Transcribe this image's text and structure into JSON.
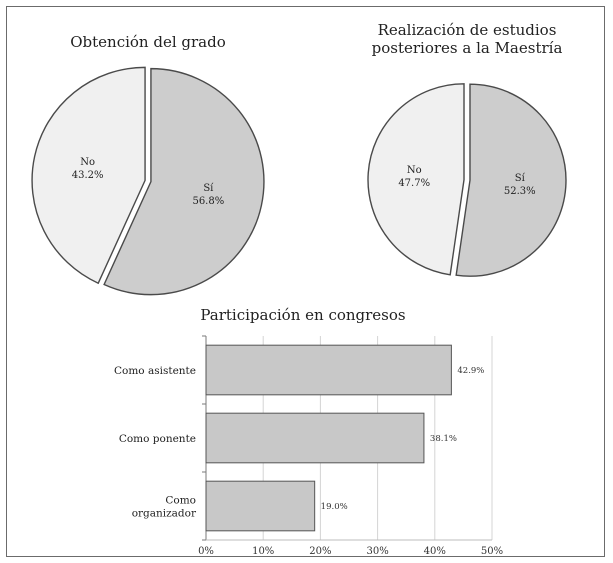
{
  "chart_data": [
    {
      "type": "pie",
      "title": "Obtención del grado",
      "slices": [
        {
          "label": "Sí",
          "value": 56.8,
          "value_label": "56.8%",
          "color": "#cdcdcd"
        },
        {
          "label": "No",
          "value": 43.2,
          "value_label": "43.2%",
          "color": "#f0f0f0"
        }
      ],
      "exploded": true
    },
    {
      "type": "pie",
      "title": "Realización de estudios posteriores a la Maestría",
      "title_lines": [
        "Realización de estudios",
        "posteriores a la Maestría"
      ],
      "slices": [
        {
          "label": "Sí",
          "value": 52.3,
          "value_label": "52.3%",
          "color": "#cdcdcd"
        },
        {
          "label": "No",
          "value": 47.7,
          "value_label": "47.7%",
          "color": "#f0f0f0"
        }
      ],
      "exploded": true
    },
    {
      "type": "bar",
      "orientation": "horizontal",
      "title": "Participación en congresos",
      "categories": [
        "Como asistente",
        "Como ponente",
        "Como organizador"
      ],
      "category_lines": [
        [
          "Como asistente"
        ],
        [
          "Como ponente"
        ],
        [
          "Como",
          "organizador"
        ]
      ],
      "values": [
        42.9,
        38.1,
        19.0
      ],
      "value_labels": [
        "42.9%",
        "38.1%",
        "19.0%"
      ],
      "xlim": [
        0,
        50
      ],
      "xticks": [
        0,
        10,
        20,
        30,
        40,
        50
      ],
      "xtick_labels": [
        "0%",
        "10%",
        "20%",
        "30%",
        "40%",
        "50%"
      ],
      "grid": "vertical",
      "bar_color": "#c8c8c8"
    }
  ]
}
